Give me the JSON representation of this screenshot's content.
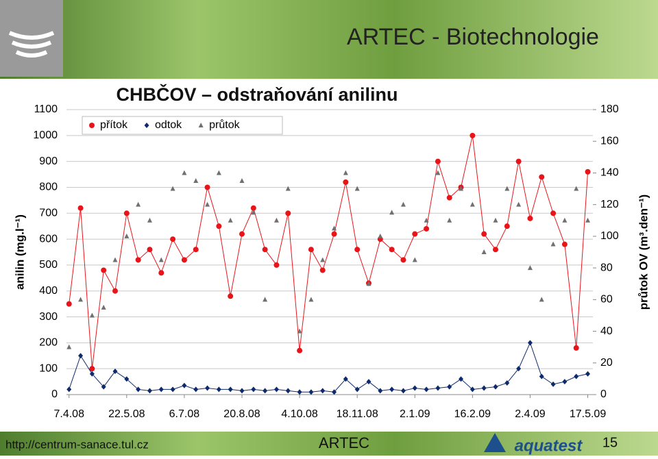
{
  "header": {
    "title": "ARTEC - Biotechnologie"
  },
  "chart_data": {
    "type": "scatter",
    "title": "CHBČOV – odstraňování anilinu",
    "y_label": "anilin (mg.l⁻¹)",
    "y2_label": "průtok OV (m³.den⁻¹)",
    "x": [
      "2008-04-07",
      "2008-04-16",
      "2008-04-25",
      "2008-05-04",
      "2008-05-13",
      "2008-05-22",
      "2008-05-31",
      "2008-06-09",
      "2008-06-18",
      "2008-06-27",
      "2008-07-06",
      "2008-07-15",
      "2008-07-24",
      "2008-08-02",
      "2008-08-11",
      "2008-08-20",
      "2008-08-29",
      "2008-09-07",
      "2008-09-16",
      "2008-09-25",
      "2008-10-04",
      "2008-10-13",
      "2008-10-22",
      "2008-10-31",
      "2008-11-09",
      "2008-11-18",
      "2008-11-27",
      "2008-12-06",
      "2008-12-15",
      "2008-12-24",
      "2009-01-02",
      "2009-01-11",
      "2009-01-20",
      "2009-01-29",
      "2009-02-07",
      "2009-02-16",
      "2009-02-25",
      "2009-03-06",
      "2009-03-15",
      "2009-03-24",
      "2009-04-02",
      "2009-04-11",
      "2009-04-20",
      "2009-04-29",
      "2009-05-08",
      "2009-05-17"
    ],
    "xlim": [
      "2008-04-05",
      "2009-05-21"
    ],
    "xticks": [
      {
        "value": "2008-04-07",
        "label": "7.4.08"
      },
      {
        "value": "2008-05-22",
        "label": "22.5.08"
      },
      {
        "value": "2008-07-06",
        "label": "6.7.08"
      },
      {
        "value": "2008-08-20",
        "label": "20.8.08"
      },
      {
        "value": "2008-10-04",
        "label": "4.10.08"
      },
      {
        "value": "2008-11-18",
        "label": "18.11.08"
      },
      {
        "value": "2009-01-02",
        "label": "2.1.09"
      },
      {
        "value": "2009-02-16",
        "label": "16.2.09"
      },
      {
        "value": "2009-04-02",
        "label": "2.4.09"
      },
      {
        "value": "2009-05-17",
        "label": "17.5.09"
      }
    ],
    "ylim": [
      0,
      1100
    ],
    "yticks": [
      0,
      100,
      200,
      300,
      400,
      500,
      600,
      700,
      800,
      900,
      1000,
      1100
    ],
    "y2lim": [
      0,
      180
    ],
    "y2ticks": [
      0,
      20,
      40,
      60,
      80,
      100,
      120,
      140,
      160,
      180
    ],
    "grid": true,
    "legend": "top-left",
    "series": [
      {
        "name": "přítok",
        "color": "#e8141a",
        "marker": "circle",
        "line": true,
        "values": [
          350,
          720,
          100,
          480,
          400,
          700,
          520,
          560,
          470,
          600,
          520,
          560,
          800,
          650,
          380,
          620,
          720,
          560,
          500,
          700,
          170,
          560,
          480,
          620,
          820,
          560,
          430,
          600,
          560,
          520,
          620,
          640,
          900,
          760,
          800,
          1000,
          620,
          560,
          650,
          900,
          680,
          840,
          700,
          580,
          180,
          860
        ]
      },
      {
        "name": "odtok",
        "color": "#0f2a6b",
        "marker": "diamond",
        "line": true,
        "values": [
          20,
          150,
          80,
          30,
          90,
          60,
          20,
          15,
          20,
          20,
          35,
          20,
          25,
          20,
          20,
          15,
          20,
          15,
          20,
          15,
          10,
          10,
          15,
          10,
          60,
          20,
          50,
          15,
          20,
          15,
          25,
          20,
          25,
          30,
          60,
          20,
          25,
          30,
          45,
          100,
          200,
          70,
          40,
          50,
          70,
          80
        ]
      },
      {
        "name": "průtok",
        "color": "#707070",
        "marker": "triangle",
        "line": false,
        "axis": "y2",
        "values": [
          30,
          60,
          50,
          55,
          85,
          100,
          120,
          110,
          85,
          130,
          140,
          135,
          120,
          140,
          110,
          135,
          115,
          60,
          110,
          130,
          40,
          60,
          85,
          105,
          140,
          130,
          70,
          100,
          115,
          120,
          85,
          110,
          140,
          110,
          130,
          120,
          90,
          110,
          130,
          120,
          80,
          60,
          95,
          110,
          130,
          110
        ]
      }
    ]
  },
  "footer": {
    "url": "http://centrum-sanace.tul.cz",
    "center": "ARTEC",
    "logo": "aquatest",
    "page": "15"
  }
}
